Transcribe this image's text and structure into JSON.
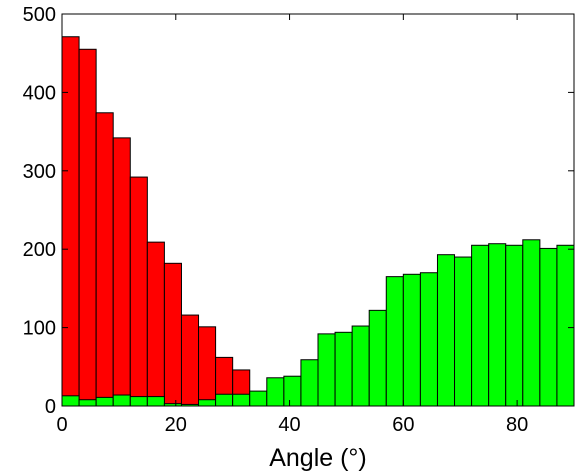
{
  "chart_data": {
    "type": "bar",
    "title": "",
    "xlabel": "Angle (°)",
    "ylabel": "",
    "xlim": [
      0,
      90
    ],
    "ylim": [
      0,
      500
    ],
    "xticks": [
      0,
      20,
      40,
      60,
      80
    ],
    "yticks": [
      0,
      100,
      200,
      300,
      400,
      500
    ],
    "grid": false,
    "bin_width": 3,
    "bin_starts": [
      0,
      3,
      6,
      9,
      12,
      15,
      18,
      21,
      24,
      27,
      30,
      33,
      36,
      39,
      42,
      45,
      48,
      51,
      54,
      57,
      60,
      63,
      66,
      69,
      72,
      75,
      78,
      81,
      84,
      87
    ],
    "series": [
      {
        "color": "#ff0000",
        "values": [
          471,
          455,
          374,
          342,
          292,
          209,
          182,
          116,
          101,
          62,
          46,
          0,
          0,
          0,
          0,
          0,
          0,
          0,
          0,
          0,
          0,
          0,
          0,
          0,
          0,
          0,
          0,
          0,
          0,
          0
        ]
      },
      {
        "color": "#00ff00",
        "values": [
          13,
          8,
          11,
          14,
          12,
          12,
          3,
          2,
          8,
          15,
          15,
          19,
          36,
          38,
          59,
          92,
          94,
          102,
          122,
          165,
          168,
          170,
          193,
          190,
          205,
          207,
          205,
          212,
          201,
          205
        ]
      }
    ]
  }
}
